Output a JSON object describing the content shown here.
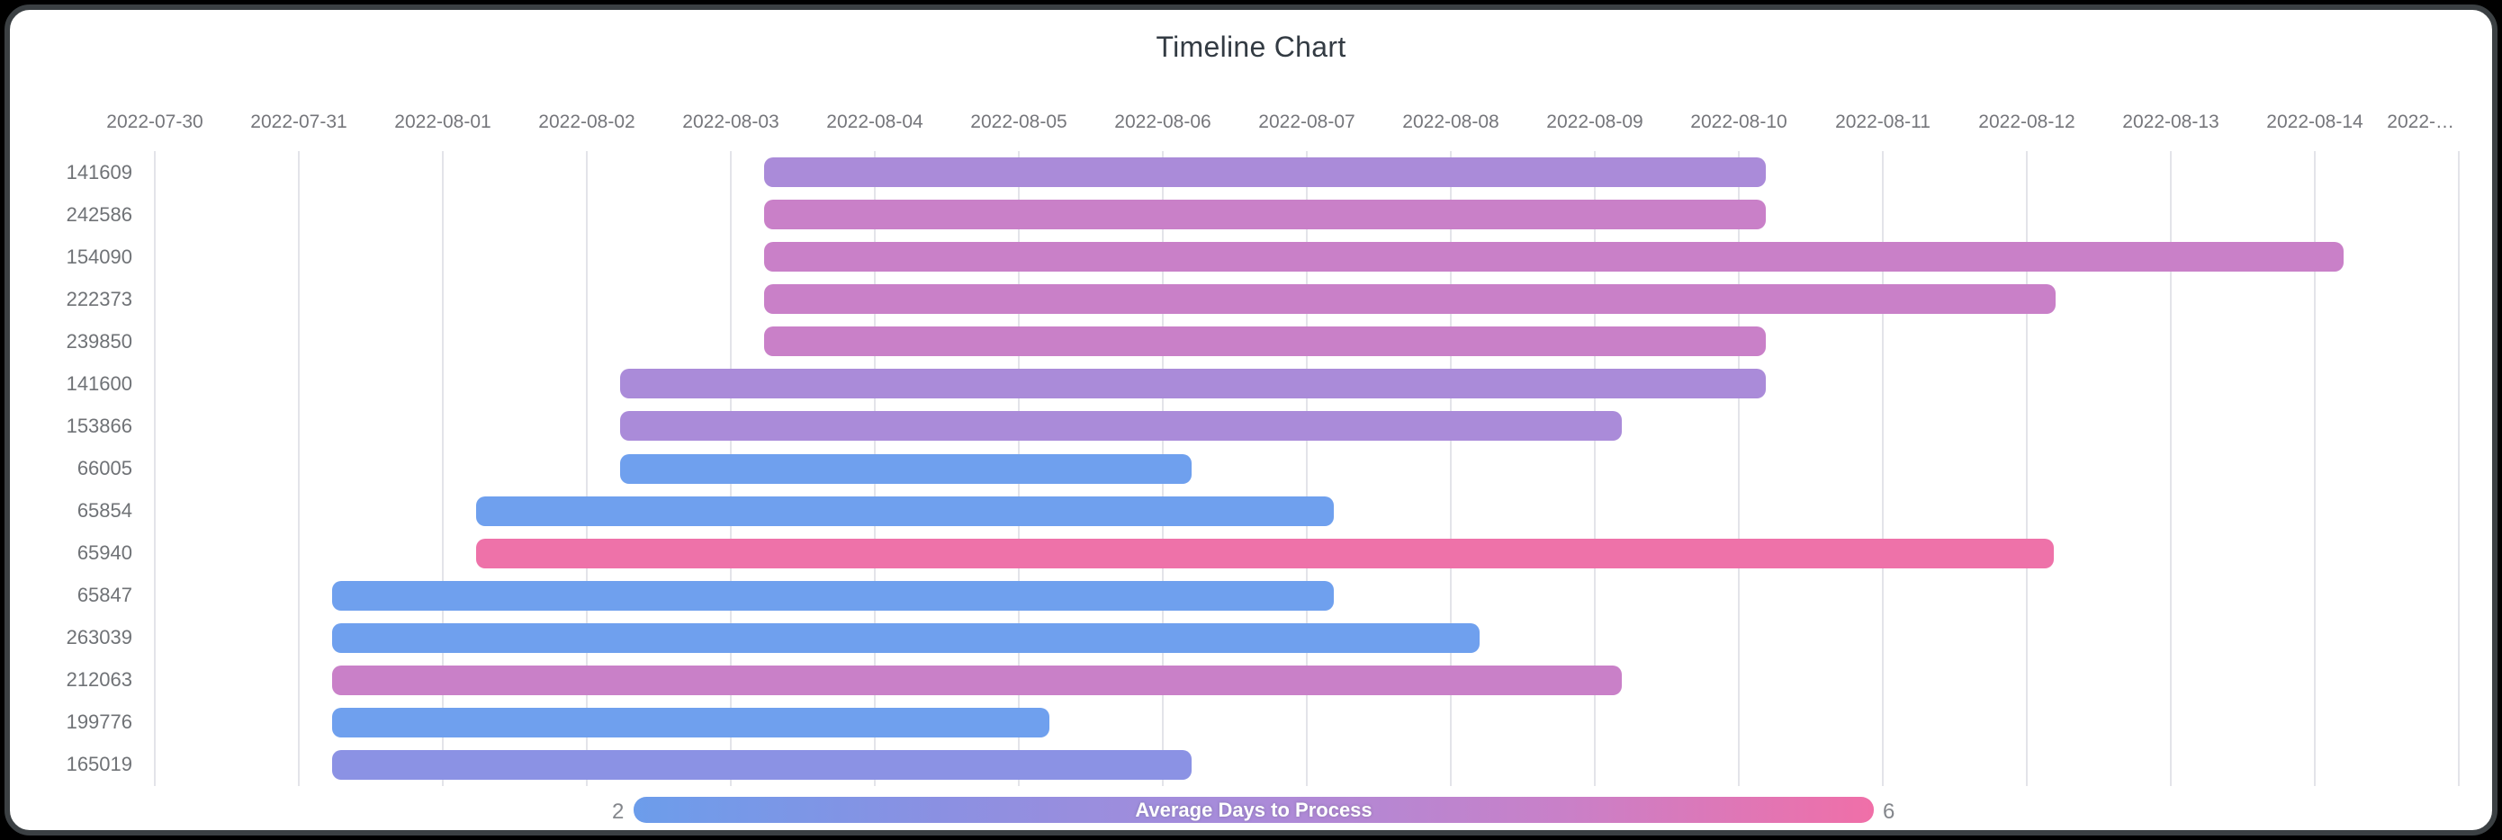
{
  "title": "Timeline Chart",
  "legend": {
    "min_label": "2",
    "max_label": "6",
    "title": "Average Days to Process",
    "gradient": [
      "#6c9deb",
      "#8b90e2",
      "#aa8bd9",
      "#c980c8",
      "#f06fa8"
    ]
  },
  "chart_data": {
    "type": "bar",
    "subtype": "horizontal-timeline-gantt",
    "x_axis": {
      "start_date": "2022-07-30",
      "days_per_tick": 1,
      "tick_labels": [
        "2022-07-30",
        "2022-07-31",
        "2022-08-01",
        "2022-08-02",
        "2022-08-03",
        "2022-08-04",
        "2022-08-05",
        "2022-08-06",
        "2022-08-07",
        "2022-08-08",
        "2022-08-09",
        "2022-08-10",
        "2022-08-11",
        "2022-08-12",
        "2022-08-13",
        "2022-08-14",
        "2022-…"
      ],
      "grid": true
    },
    "color_scale": {
      "field": "avg_days_to_process",
      "min": 2,
      "max": 6,
      "min_color": "#6c9deb",
      "max_color": "#f06fa8",
      "legend_position": "bottom-center"
    },
    "rows": [
      {
        "id": "141609",
        "start_date": "2022-08-03",
        "end_date": "2022-08-10",
        "start_day": 4.23,
        "end_day": 11.19,
        "color": "#aa8bd9",
        "avg_days_to_process_est": 4
      },
      {
        "id": "242586",
        "start_date": "2022-08-03",
        "end_date": "2022-08-10",
        "start_day": 4.23,
        "end_day": 11.19,
        "color": "#c980c8",
        "avg_days_to_process_est": 5
      },
      {
        "id": "154090",
        "start_date": "2022-08-03",
        "end_date": "2022-08-14",
        "start_day": 4.23,
        "end_day": 15.2,
        "color": "#c980c8",
        "avg_days_to_process_est": 5
      },
      {
        "id": "222373",
        "start_date": "2022-08-03",
        "end_date": "2022-08-12",
        "start_day": 4.23,
        "end_day": 13.2,
        "color": "#c980c8",
        "avg_days_to_process_est": 5
      },
      {
        "id": "239850",
        "start_date": "2022-08-03",
        "end_date": "2022-08-10",
        "start_day": 4.23,
        "end_day": 11.19,
        "color": "#c980c8",
        "avg_days_to_process_est": 5
      },
      {
        "id": "141600",
        "start_date": "2022-08-02",
        "end_date": "2022-08-10",
        "start_day": 3.23,
        "end_day": 11.19,
        "color": "#aa8bd9",
        "avg_days_to_process_est": 4
      },
      {
        "id": "153866",
        "start_date": "2022-08-02",
        "end_date": "2022-08-09",
        "start_day": 3.23,
        "end_day": 10.19,
        "color": "#aa8bd9",
        "avg_days_to_process_est": 4
      },
      {
        "id": "66005",
        "start_date": "2022-08-02",
        "end_date": "2022-08-06",
        "start_day": 3.23,
        "end_day": 7.2,
        "color": "#6fa0ee",
        "avg_days_to_process_est": 2
      },
      {
        "id": "65854",
        "start_date": "2022-08-01",
        "end_date": "2022-08-07",
        "start_day": 2.23,
        "end_day": 8.19,
        "color": "#6fa0ee",
        "avg_days_to_process_est": 2
      },
      {
        "id": "65940",
        "start_date": "2022-08-01",
        "end_date": "2022-08-12",
        "start_day": 2.23,
        "end_day": 13.19,
        "color": "#ee72a9",
        "avg_days_to_process_est": 6
      },
      {
        "id": "65847",
        "start_date": "2022-07-31",
        "end_date": "2022-08-07",
        "start_day": 1.23,
        "end_day": 8.19,
        "color": "#6fa0ee",
        "avg_days_to_process_est": 2
      },
      {
        "id": "263039",
        "start_date": "2022-07-31",
        "end_date": "2022-08-08",
        "start_day": 1.23,
        "end_day": 9.2,
        "color": "#6fa0ee",
        "avg_days_to_process_est": 2
      },
      {
        "id": "212063",
        "start_date": "2022-07-31",
        "end_date": "2022-08-09",
        "start_day": 1.23,
        "end_day": 10.19,
        "color": "#c980c8",
        "avg_days_to_process_est": 5
      },
      {
        "id": "199776",
        "start_date": "2022-07-31",
        "end_date": "2022-08-05",
        "start_day": 1.23,
        "end_day": 6.21,
        "color": "#6fa0ee",
        "avg_days_to_process_est": 2
      },
      {
        "id": "165019",
        "start_date": "2022-07-31",
        "end_date": "2022-08-06",
        "start_day": 1.23,
        "end_day": 7.2,
        "color": "#8b92e4",
        "avg_days_to_process_est": 3
      }
    ]
  }
}
